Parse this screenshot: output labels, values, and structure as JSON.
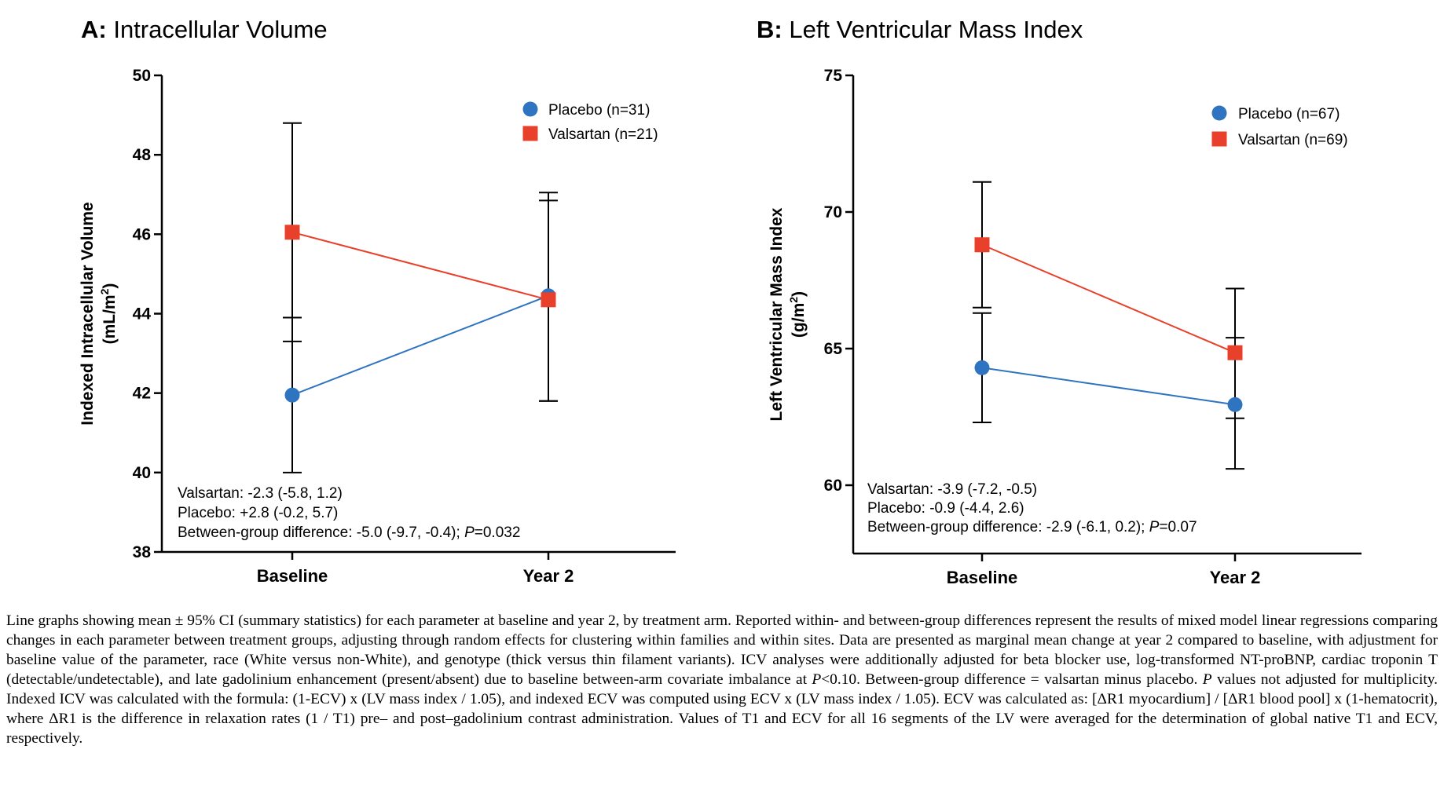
{
  "chart_data": [
    {
      "type": "line",
      "panel_label": "A:",
      "title": "Intracellular Volume",
      "xlabel": "",
      "ylabel": "Indexed Intracellular Volume",
      "ylabel_unit": "(mL/m",
      "ylabel_unit_sup": "2",
      "ylabel_unit_close": ")",
      "categories": [
        "Baseline",
        "Year 2"
      ],
      "ylim": [
        38,
        50
      ],
      "yticks": [
        "38",
        "40",
        "42",
        "44",
        "46",
        "48",
        "50"
      ],
      "series": [
        {
          "name": "Placebo (n=31)",
          "color": "#2f74c0",
          "marker": "circle",
          "values": [
            41.95,
            44.45
          ],
          "ci_low": [
            40.0,
            41.8
          ],
          "ci_high": [
            43.9,
            46.85
          ]
        },
        {
          "name": "Valsartan (n=21)",
          "color": "#e8402b",
          "marker": "square",
          "values": [
            46.05,
            44.35
          ],
          "ci_low": [
            43.3,
            41.8
          ],
          "ci_high": [
            48.8,
            47.05
          ]
        }
      ],
      "legend_position": "top-right",
      "annotations": {
        "valsartan": "Valsartan: -2.3 (-5.8, 1.2)",
        "placebo": "Placebo: +2.8 (-0.2, 5.7)",
        "between_prefix": "Between-group difference: -5.0 (-9.7, -0.4); ",
        "p_label": "P",
        "p_value": "=0.032"
      }
    },
    {
      "type": "line",
      "panel_label": "B:",
      "title": "Left Ventricular Mass Index",
      "xlabel": "",
      "ylabel": "Left Ventricular Mass Index",
      "ylabel_unit": "(g/m",
      "ylabel_unit_sup": "2",
      "ylabel_unit_close": ")",
      "categories": [
        "Baseline",
        "Year 2"
      ],
      "ylim": [
        57.5,
        75
      ],
      "yticks": [
        "60",
        "65",
        "70",
        "75"
      ],
      "series": [
        {
          "name": "Placebo (n=67)",
          "color": "#2f74c0",
          "marker": "circle",
          "values": [
            64.3,
            62.95
          ],
          "ci_low": [
            62.3,
            60.6
          ],
          "ci_high": [
            66.3,
            65.4
          ]
        },
        {
          "name": "Valsartan (n=69)",
          "color": "#e8402b",
          "marker": "square",
          "values": [
            68.8,
            64.85
          ],
          "ci_low": [
            66.5,
            62.45
          ],
          "ci_high": [
            71.1,
            67.2
          ]
        }
      ],
      "legend_position": "top-right",
      "annotations": {
        "valsartan": "Valsartan: -3.9 (-7.2, -0.5)",
        "placebo": "Placebo: -0.9 (-4.4, 2.6)",
        "between_prefix": "Between-group difference: -2.9 (-6.1, 0.2); ",
        "p_label": "P",
        "p_value": "=0.07"
      }
    }
  ],
  "caption": {
    "part1": "Line graphs showing mean ± 95% CI (summary statistics) for each parameter at baseline and year 2, by treatment arm. Reported within- and between-group differences represent the results of mixed model linear regressions comparing changes in each parameter between treatment groups, adjusting through random effects for clustering within families and within sites. Data are presented as marginal mean change at year 2 compared to baseline, with adjustment for baseline value of the parameter, race (White versus non-White), and genotype (thick versus thin filament variants). ICV analyses were additionally adjusted for beta blocker use, log-transformed NT-proBNP, cardiac troponin T (detectable/undetectable), and late gadolinium enhancement (present/absent) due to baseline between-arm covariate imbalance at ",
    "p1": "P",
    "part2": "<0.10. Between-group difference = valsartan minus placebo. ",
    "p2": "P",
    "part3": " values not adjusted for multiplicity. Indexed ICV was calculated with the formula: (1-ECV) x (LV mass index / 1.05), and indexed ECV was computed using ECV x (LV mass index / 1.05). ECV was calculated as: [ΔR1 myocardium] / [ΔR1 blood pool] x (1-hematocrit), where ΔR1 is the difference in relaxation rates (1 / T1) pre– and post–gadolinium contrast administration. Values of T1 and ECV for all 16 segments of the LV were averaged for the determination of global native T1 and ECV, respectively."
  }
}
